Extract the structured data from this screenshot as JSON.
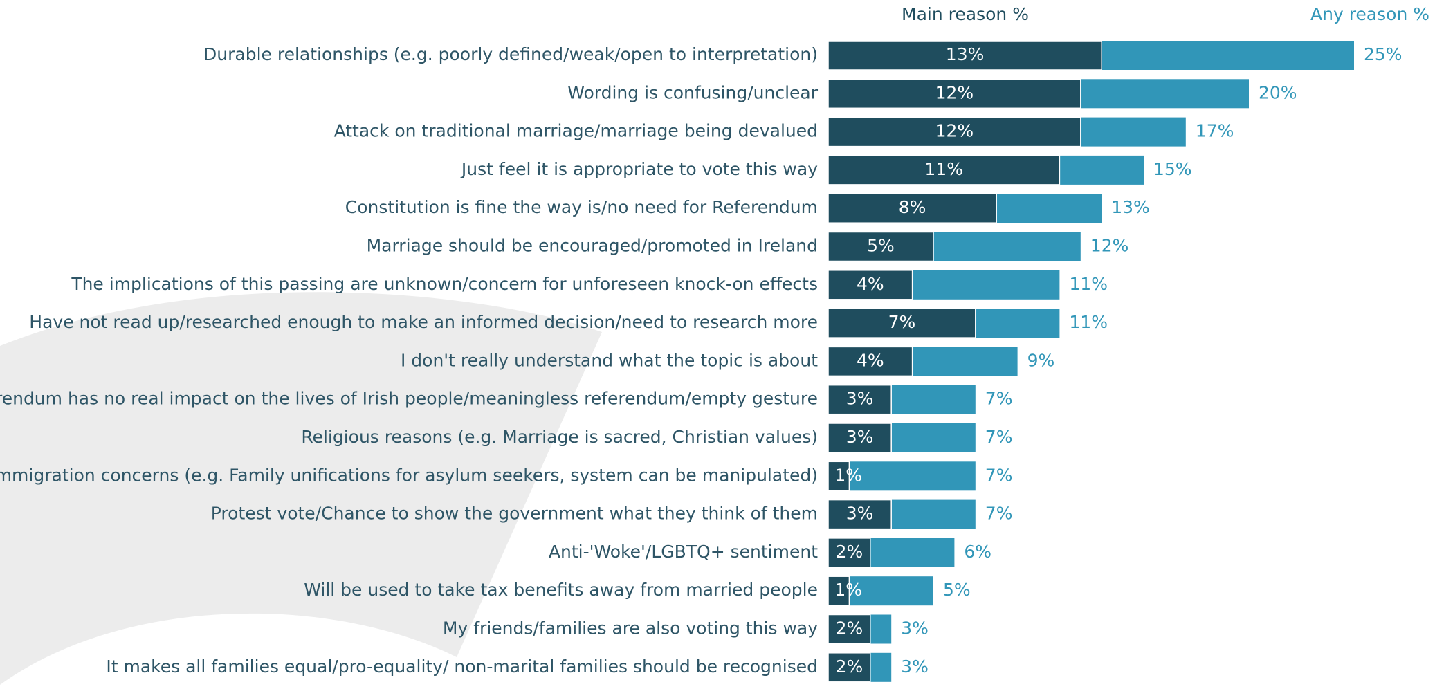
{
  "chart_data": {
    "type": "bar",
    "categories": [
      "Durable relationships (e.g. poorly defined/weak/open to interpretation)",
      "Wording is confusing/unclear",
      "Attack on traditional marriage/marriage being devalued",
      "Just feel it is appropriate to vote this way",
      "Constitution is fine the way is/no need for Referendum",
      "Marriage should be encouraged/promoted in Ireland",
      "The implications of this passing are unknown/concern for unforeseen knock-on effects",
      "Have not read up/researched enough to make an informed decision/need to research more",
      "I don't really understand what the topic is about",
      "The referendum has no real impact on the lives of Irish people/meaningless referendum/empty gesture",
      "Religious reasons (e.g. Marriage is sacred, Christian values)",
      "Immigration concerns (e.g. Family unifications for asylum seekers, system can be manipulated)",
      "Protest vote/Chance to show the government what they think of them",
      "Anti-'Woke'/LGBTQ+ sentiment",
      "Will be used to take tax benefits away from married people",
      "My friends/families are also voting this way",
      "It makes all families equal/pro-equality/ non-marital families should be recognised"
    ],
    "series": [
      {
        "name": "Main reason %",
        "color": "#1f4d5e",
        "values": [
          13,
          12,
          12,
          11,
          8,
          5,
          4,
          7,
          4,
          3,
          3,
          1,
          3,
          2,
          1,
          2,
          2
        ],
        "value_labels": [
          "13%",
          "12%",
          "12%",
          "11%",
          "8%",
          "5%",
          "4%",
          "7%",
          "4%",
          "3%",
          "3%",
          "1%",
          "3%",
          "2%",
          "1%",
          "2%",
          "2%"
        ]
      },
      {
        "name": "Any reason %",
        "color": "#3196b8",
        "values": [
          25,
          20,
          17,
          15,
          13,
          12,
          11,
          11,
          9,
          7,
          7,
          7,
          7,
          6,
          5,
          3,
          3
        ],
        "value_labels": [
          "25%",
          "20%",
          "17%",
          "15%",
          "13%",
          "12%",
          "11%",
          "11%",
          "9%",
          "7%",
          "7%",
          "7%",
          "7%",
          "6%",
          "5%",
          "3%",
          "3%"
        ]
      }
    ]
  }
}
